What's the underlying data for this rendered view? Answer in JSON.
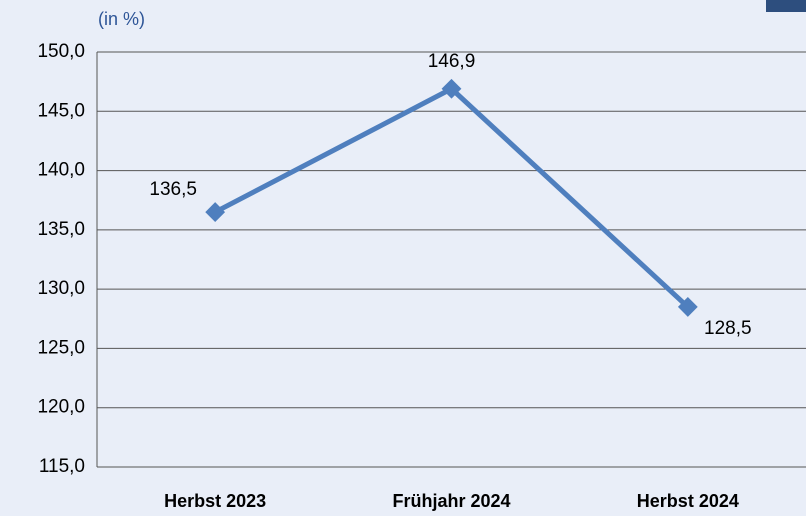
{
  "chart_data": {
    "type": "line",
    "y_label": "(in %)",
    "categories": [
      "Herbst 2023",
      "Frühjahr 2024",
      "Herbst 2024"
    ],
    "series": [
      {
        "name": "Wert",
        "color": "#4f7fbe",
        "values": [
          136.5,
          146.9,
          128.5
        ],
        "value_labels": [
          "136,5",
          "146,9",
          "128,5"
        ]
      }
    ],
    "ylim": [
      115,
      150
    ],
    "yticks": [
      {
        "value": 115,
        "label": "115,0"
      },
      {
        "value": 120,
        "label": "120,0"
      },
      {
        "value": 125,
        "label": "125,0"
      },
      {
        "value": 130,
        "label": "130,0"
      },
      {
        "value": 135,
        "label": "135,0"
      },
      {
        "value": 140,
        "label": "140,0"
      },
      {
        "value": 145,
        "label": "145,0"
      },
      {
        "value": 150,
        "label": "150,0"
      }
    ],
    "grid": true
  }
}
